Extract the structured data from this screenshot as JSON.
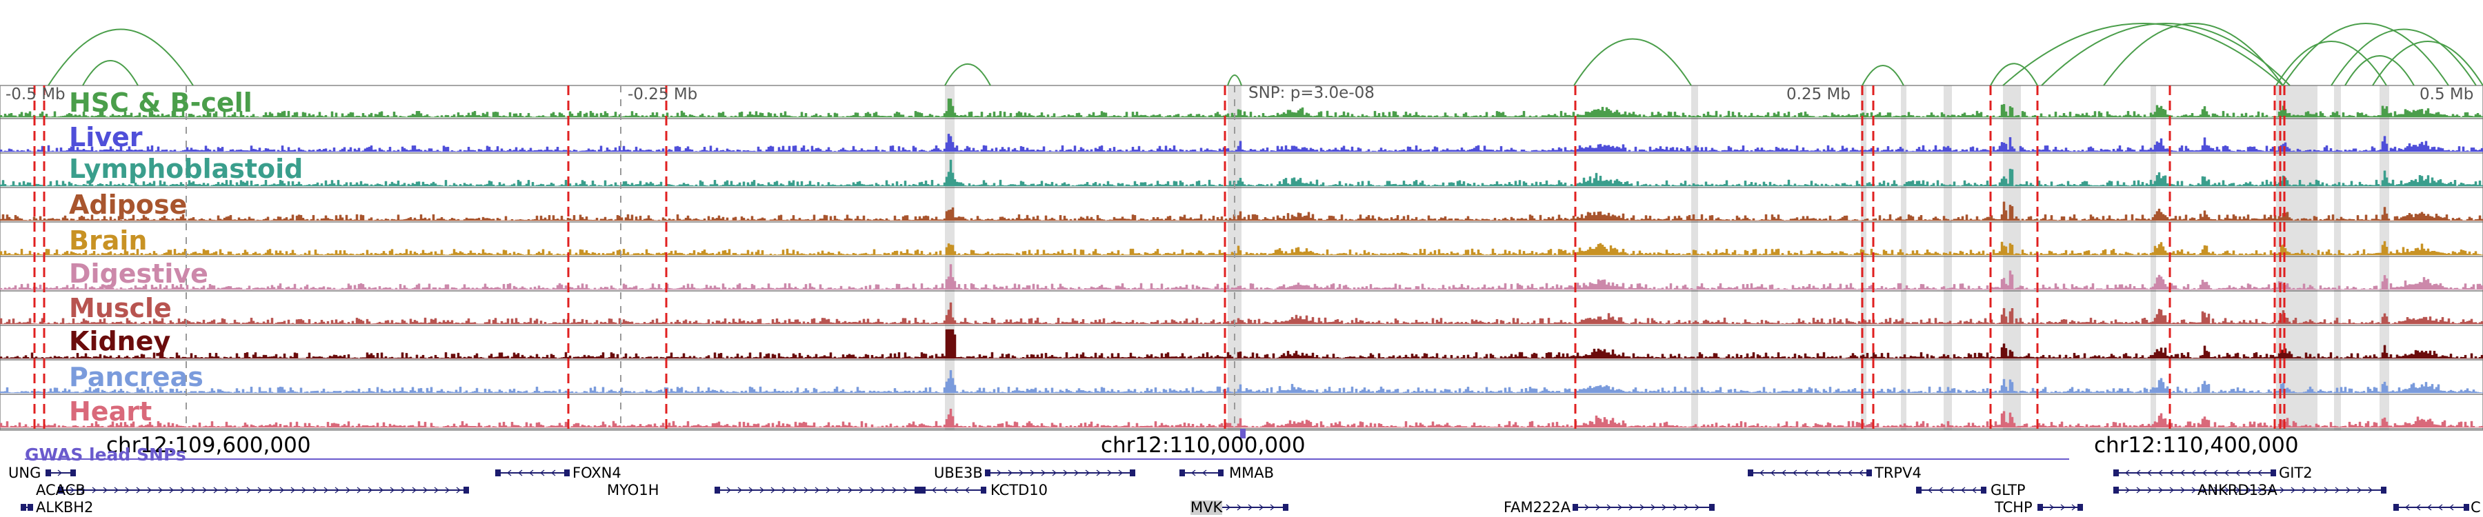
{
  "coordinates": {
    "left_offset": "-0.5 Mb",
    "mid_left_offset": "-0.25 Mb",
    "mid_right_offset": "0.25 Mb",
    "right_offset": "0.5 Mb"
  },
  "snp_label": "SNP: p=3.0e-08",
  "tracks": [
    {
      "label": "HSC & B-cell",
      "color": "#4a9e4a"
    },
    {
      "label": "Liver",
      "color": "#4f4fd9"
    },
    {
      "label": "Lymphoblastoid",
      "color": "#3a9e8c"
    },
    {
      "label": "Adipose",
      "color": "#a8552e"
    },
    {
      "label": "Brain",
      "color": "#c89224"
    },
    {
      "label": "Digestive",
      "color": "#cc88aa"
    },
    {
      "label": "Muscle",
      "color": "#b85450"
    },
    {
      "label": "Kidney",
      "color": "#6b0c0c"
    },
    {
      "label": "Pancreas",
      "color": "#7a9bdc"
    },
    {
      "label": "Heart",
      "color": "#d9697a"
    }
  ],
  "chromosome_ticks": [
    "chr12:109,600,000",
    "chr12:110,000,000",
    "chr12:110,400,000"
  ],
  "gwas_label": "GWAS lead SNPs",
  "genes": [
    {
      "name": "UNG",
      "strand": "+"
    },
    {
      "name": "ACACB",
      "strand": "+"
    },
    {
      "name": "ALKBH2",
      "strand": "-"
    },
    {
      "name": "FOXN4",
      "strand": "-"
    },
    {
      "name": "MYO1H",
      "strand": "+"
    },
    {
      "name": "UBE3B",
      "strand": "+"
    },
    {
      "name": "KCTD10",
      "strand": "-"
    },
    {
      "name": "MMAB",
      "strand": "-"
    },
    {
      "name": "MVK",
      "strand": "+"
    },
    {
      "name": "FAM222A",
      "strand": "+"
    },
    {
      "name": "TRPV4",
      "strand": "-"
    },
    {
      "name": "GLTP",
      "strand": "-"
    },
    {
      "name": "TCHP",
      "strand": "+"
    },
    {
      "name": "GIT2",
      "strand": "-"
    },
    {
      "name": "ANKRD13A",
      "strand": "+"
    },
    {
      "name": "C",
      "strand": "-"
    }
  ],
  "colors": {
    "arc": "#4a9e4a",
    "gwas_line": "#6a5acd",
    "gene": "#1c1c6e",
    "red_marker": "#e02020",
    "highlight": "#c8c8c8"
  }
}
